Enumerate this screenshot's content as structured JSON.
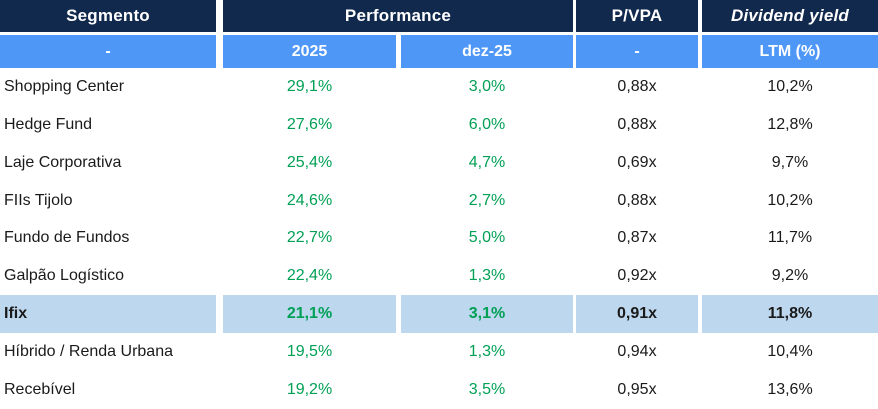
{
  "chart_data": {
    "type": "table",
    "header": {
      "segmento": "Segmento",
      "performance": "Performance",
      "pvpa": "P/VPA",
      "dividend_yield": "Dividend yield"
    },
    "subheader": {
      "segmento": "-",
      "perf_2025": "2025",
      "perf_dez25": "dez-25",
      "pvpa": "-",
      "dy_ltm": "LTM (%)"
    },
    "rows": [
      {
        "segment": "Shopping Center",
        "perf_2025": "29,1%",
        "perf_dez25": "3,0%",
        "pvpa": "0,88x",
        "dy_ltm": "10,2%",
        "highlight": false
      },
      {
        "segment": "Hedge Fund",
        "perf_2025": "27,6%",
        "perf_dez25": "6,0%",
        "pvpa": "0,88x",
        "dy_ltm": "12,8%",
        "highlight": false
      },
      {
        "segment": "Laje Corporativa",
        "perf_2025": "25,4%",
        "perf_dez25": "4,7%",
        "pvpa": "0,69x",
        "dy_ltm": "9,7%",
        "highlight": false
      },
      {
        "segment": "FIIs Tijolo",
        "perf_2025": "24,6%",
        "perf_dez25": "2,7%",
        "pvpa": "0,88x",
        "dy_ltm": "10,2%",
        "highlight": false
      },
      {
        "segment": "Fundo de Fundos",
        "perf_2025": "22,7%",
        "perf_dez25": "5,0%",
        "pvpa": "0,87x",
        "dy_ltm": "11,7%",
        "highlight": false
      },
      {
        "segment": "Galpão Logístico",
        "perf_2025": "22,4%",
        "perf_dez25": "1,3%",
        "pvpa": "0,92x",
        "dy_ltm": "9,2%",
        "highlight": false
      },
      {
        "segment": "Ifix",
        "perf_2025": "21,1%",
        "perf_dez25": "3,1%",
        "pvpa": "0,91x",
        "dy_ltm": "11,8%",
        "highlight": true
      },
      {
        "segment": "Híbrido / Renda Urbana",
        "perf_2025": "19,5%",
        "perf_dez25": "1,3%",
        "pvpa": "0,94x",
        "dy_ltm": "10,4%",
        "highlight": false
      },
      {
        "segment": "Recebível",
        "perf_2025": "19,2%",
        "perf_dez25": "3,5%",
        "pvpa": "0,95x",
        "dy_ltm": "13,6%",
        "highlight": false
      }
    ]
  },
  "colors": {
    "header_bg": "#12294E",
    "subheader_bg": "#4F97F6",
    "highlight_bg": "#BDD7EE",
    "positive_green": "#00A055",
    "text_dark": "#1A1A1A"
  }
}
